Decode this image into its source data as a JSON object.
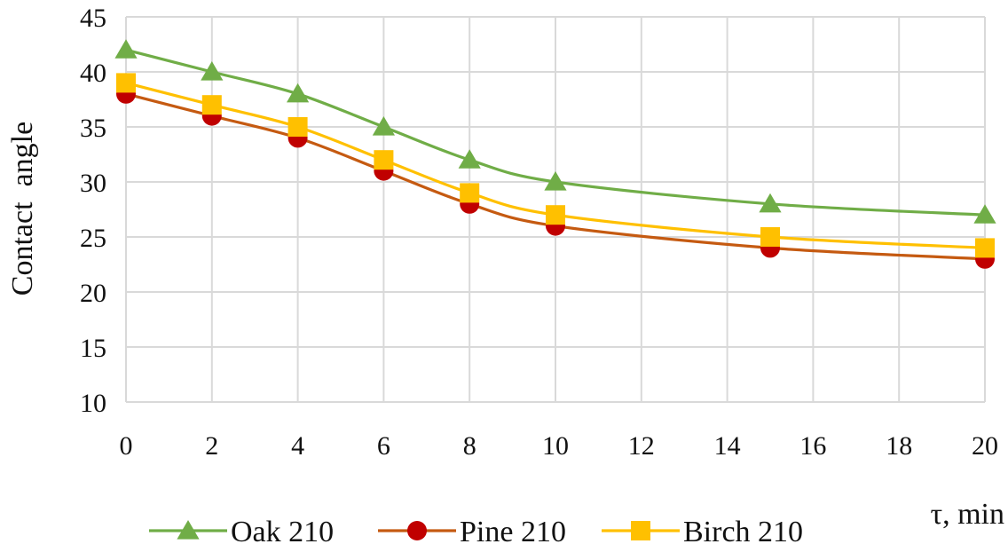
{
  "chart_data": {
    "type": "line",
    "title": "",
    "xlabel": "τ, min",
    "ylabel": "Contact  angle",
    "xlim": [
      0,
      20
    ],
    "ylim": [
      10,
      45
    ],
    "xticks": [
      "0",
      "2",
      "4",
      "6",
      "8",
      "10",
      "12",
      "14",
      "16",
      "18",
      "20"
    ],
    "yticks": [
      "10",
      "15",
      "20",
      "25",
      "30",
      "35",
      "40",
      "45"
    ],
    "grid": true,
    "smooth": true,
    "legend_position": "bottom",
    "x": [
      0,
      2,
      4,
      6,
      8,
      10,
      15,
      20
    ],
    "series": [
      {
        "name": "Oak 210",
        "color": "#70AD47",
        "marker": "triangle",
        "values": [
          42,
          40,
          38,
          35,
          32,
          30,
          28,
          27
        ]
      },
      {
        "name": "Pine 210",
        "color": "#C55A11",
        "marker_color": "#C00000",
        "marker": "circle",
        "values": [
          38,
          36,
          34,
          31,
          28,
          26,
          24,
          23
        ]
      },
      {
        "name": "Birch 210",
        "color": "#FFC000",
        "marker": "square",
        "values": [
          39,
          37,
          35,
          32,
          29,
          27,
          25,
          24
        ]
      }
    ]
  }
}
